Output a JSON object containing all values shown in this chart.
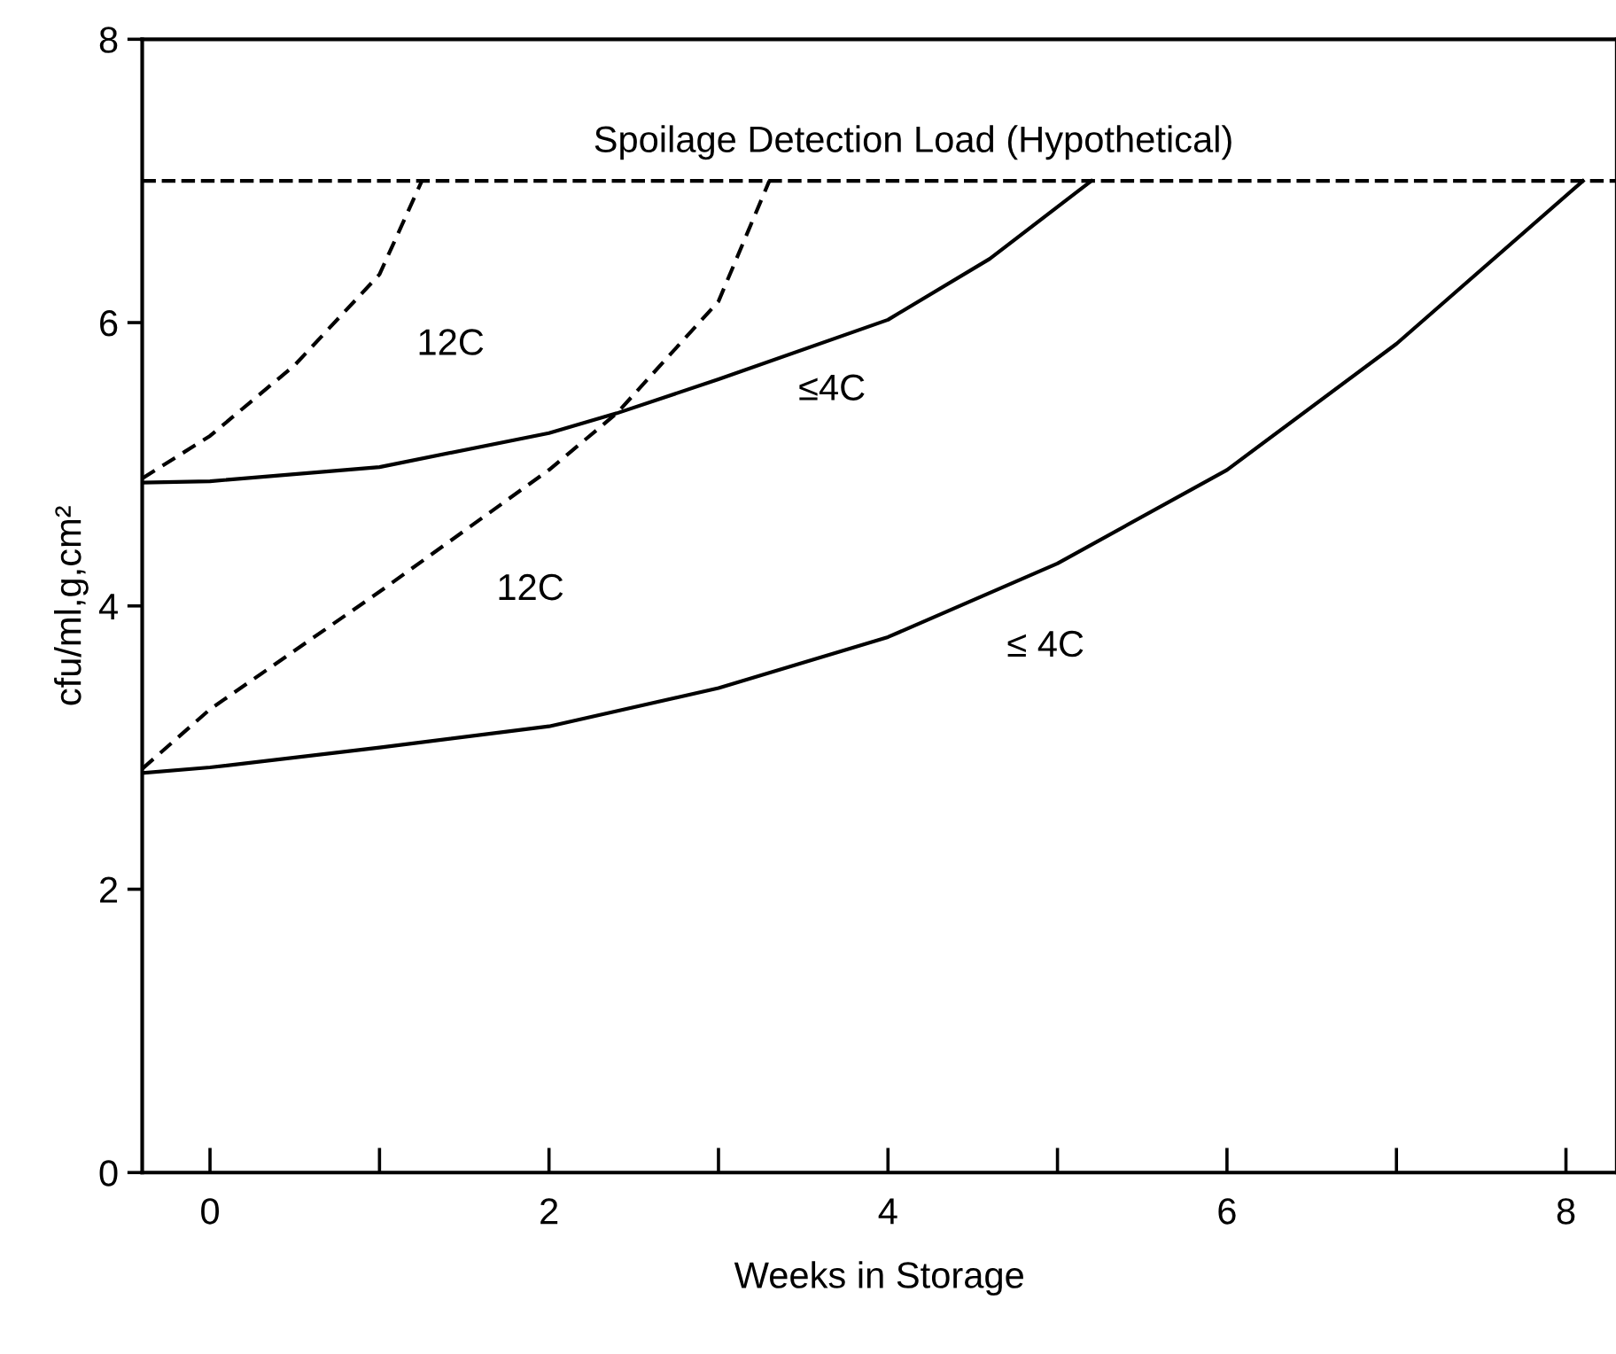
{
  "chart_data": {
    "type": "line",
    "xlabel": "Weeks in Storage",
    "ylabel": "cfu/ml,g,cm²",
    "xlim": [
      -0.4,
      8.3
    ],
    "ylim": [
      0,
      8
    ],
    "xticks": [
      0,
      {
        "value": 1,
        "label": null
      },
      2,
      {
        "value": 3,
        "label": null
      },
      4,
      {
        "value": 5,
        "label": null
      },
      6,
      {
        "value": 7,
        "label": null
      },
      8
    ],
    "yticks": [
      0,
      2,
      4,
      6,
      8
    ],
    "grid": false,
    "legend": false,
    "marker": "none",
    "series": [
      {
        "name": "12C",
        "color": "#000000",
        "line_style": "dashed",
        "x": [
          -0.4,
          0,
          0.5,
          1,
          1.25
        ],
        "values": [
          4.9,
          5.2,
          5.7,
          6.34,
          7.0
        ]
      },
      {
        "name": "≤4C",
        "color": "#000000",
        "line_style": "solid",
        "x": [
          -0.4,
          0,
          1,
          2,
          2.4,
          3,
          4,
          4.6,
          5.2
        ],
        "values": [
          4.87,
          4.88,
          4.98,
          5.22,
          5.36,
          5.6,
          6.02,
          6.45,
          7.0
        ]
      },
      {
        "name": "12C",
        "color": "#000000",
        "line_style": "dashed",
        "x": [
          -0.4,
          0,
          1,
          2,
          2.4,
          3,
          3.3
        ],
        "values": [
          2.85,
          3.27,
          4.1,
          4.96,
          5.36,
          6.15,
          7.0
        ]
      },
      {
        "name": "≤ 4C",
        "color": "#000000",
        "line_style": "solid",
        "x": [
          -0.4,
          0,
          1,
          2,
          3,
          4,
          5,
          6,
          7,
          8.1
        ],
        "values": [
          2.82,
          2.86,
          3.0,
          3.15,
          3.42,
          3.78,
          4.3,
          4.96,
          5.85,
          7.0
        ]
      }
    ],
    "ref_lines": [
      {
        "axis": "y",
        "value": 7,
        "label": "Spoilage Detection Load (Hypothetical)",
        "color": "#000000",
        "line_style": "dashed"
      }
    ]
  }
}
